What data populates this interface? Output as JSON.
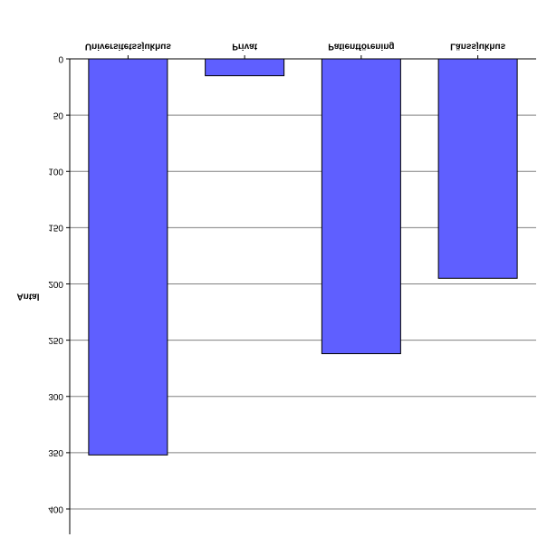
{
  "chart_data": {
    "type": "bar",
    "orientation": "flipped-vertical",
    "ylabel": "Antal",
    "ylim": [
      0,
      400
    ],
    "yticks": [
      "0",
      "50",
      "100",
      "150",
      "200",
      "250",
      "300",
      "350",
      "400"
    ],
    "categories": [
      "Universitetssjukhus",
      "Privat",
      "Patientförening",
      "Länssjukhus"
    ],
    "values": [
      352,
      15,
      262,
      195
    ],
    "grid": true,
    "bar_color": "#5f5fff",
    "bar_edge_color": "#000000",
    "grid_color": "#808080"
  }
}
